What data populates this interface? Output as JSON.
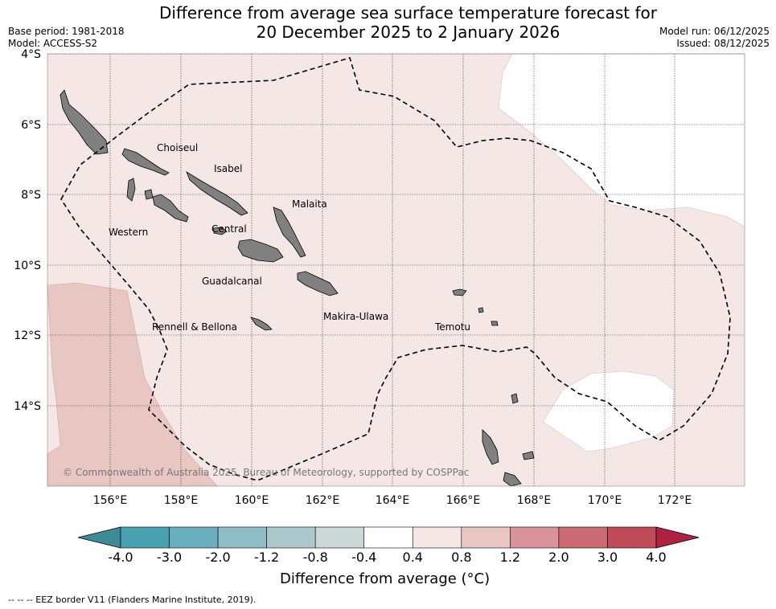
{
  "title_line1": "Difference from average sea surface temperature forecast for",
  "title_line2": "20 December 2025 to 2 January 2026",
  "base_period": "Base period: 1981-2018",
  "model": "Model: ACCESS-S2",
  "model_run": "Model run: 06/12/2025",
  "issued": "Issued: 08/12/2025",
  "lat_labels": [
    "4°S",
    "6°S",
    "8°S",
    "10°S",
    "12°S",
    "14°S"
  ],
  "lon_labels": [
    "156°E",
    "158°E",
    "160°E",
    "162°E",
    "164°E",
    "166°E",
    "168°E",
    "170°E",
    "172°E"
  ],
  "provinces": {
    "choiseul": "Choiseul",
    "isabel": "Isabel",
    "malaita": "Malaita",
    "western": "Western",
    "central": "Central",
    "guadalcanal": "Guadalcanal",
    "makira": "Makira-Ulawa",
    "rennell": "Rennell & Bellona",
    "temotu": "Temotu"
  },
  "copyright": "© Commonwealth of Australia 2025, Bureau of Meteorology, supported by COSPPac",
  "colorbar": {
    "ticks": [
      "-4.0",
      "-3.0",
      "-2.0",
      "-1.2",
      "-0.8",
      "-0.4",
      "0.4",
      "0.8",
      "1.2",
      "2.0",
      "3.0",
      "4.0"
    ],
    "colors": [
      "#48a1b0",
      "#6aafbe",
      "#8dbdc6",
      "#adc8cc",
      "#cdd8d9",
      "#ffffff",
      "#f5e7e6",
      "#e8c6c2",
      "#da939a",
      "#cc6a74",
      "#c04a57"
    ],
    "low_extend_color": "#3e8a95",
    "high_extend_color": "#b02040",
    "label": "Difference from average (°C)"
  },
  "anomaly_colors": {
    "band_0_4_to_0_8": "#f5e7e6",
    "band_0_8_to_1_2": "#e8c6c2",
    "neutral": "#ffffff",
    "land": "#808080"
  },
  "footnote": "-- -- -- EEZ border V11 (Flanders Marine Institute, 2019)."
}
